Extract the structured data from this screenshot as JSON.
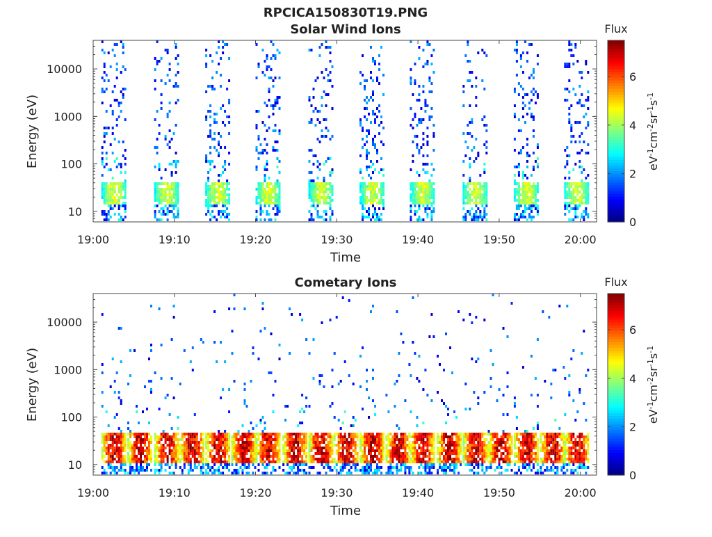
{
  "figure": {
    "title": "RPCICA150830T19.PNG"
  },
  "colormap": [
    "#00007f",
    "#0000ff",
    "#007fff",
    "#00ffff",
    "#7fff7f",
    "#ffff00",
    "#ff7f00",
    "#ff0000",
    "#7f0000"
  ],
  "chart_data": [
    {
      "type": "heatmap",
      "title": "Solar Wind Ions",
      "xlabel": "Time",
      "ylabel": "Energy (eV)",
      "x_ticks": [
        "19:00",
        "19:10",
        "19:20",
        "19:30",
        "19:40",
        "19:50",
        "20:00"
      ],
      "x_range_minutes": [
        0,
        62
      ],
      "y_scale": "log",
      "y_ticks": [
        10,
        100,
        1000,
        10000
      ],
      "y_tick_labels": [
        "10",
        "100",
        "1000",
        "10000"
      ],
      "y_range_eV": [
        6,
        40000
      ],
      "colorbar": {
        "title": "Flux",
        "label": "eV-1cm-2sr-1s-1",
        "range": [
          0,
          7.5
        ],
        "ticks": [
          0,
          2,
          4,
          6
        ]
      },
      "sweeps_start_minute": [
        1.0,
        7.5,
        13.8,
        20.0,
        26.5,
        32.8,
        39.0,
        45.5,
        51.8,
        58.0
      ],
      "sweep_duration_minutes": 3.0,
      "core_energy_eV": [
        15,
        40
      ],
      "core_peak_flux": 4.5,
      "background_flux": 1.0
    },
    {
      "type": "heatmap",
      "title": "Cometary Ions",
      "xlabel": "Time",
      "ylabel": "Energy (eV)",
      "x_ticks": [
        "19:00",
        "19:10",
        "19:20",
        "19:30",
        "19:40",
        "19:50",
        "20:00"
      ],
      "x_range_minutes": [
        0,
        62
      ],
      "y_scale": "log",
      "y_ticks": [
        10,
        100,
        1000,
        10000
      ],
      "y_tick_labels": [
        "10",
        "100",
        "1000",
        "10000"
      ],
      "y_range_eV": [
        6,
        40000
      ],
      "colorbar": {
        "title": "Flux",
        "label": "eV-1cm-2sr-1s-1",
        "range": [
          0,
          7.5
        ],
        "ticks": [
          0,
          2,
          4,
          6
        ]
      },
      "sweeps_start_minute": [
        1.0,
        4.2,
        7.5,
        10.6,
        13.8,
        17.0,
        20.0,
        23.3,
        26.5,
        29.6,
        32.8,
        36.0,
        39.0,
        42.3,
        45.5,
        48.6,
        51.8,
        55.0,
        58.0
      ],
      "sweep_duration_minutes": 3.0,
      "core_energy_eV": [
        12,
        45
      ],
      "core_peak_flux": 7.2,
      "background_flux": 1.0
    }
  ]
}
